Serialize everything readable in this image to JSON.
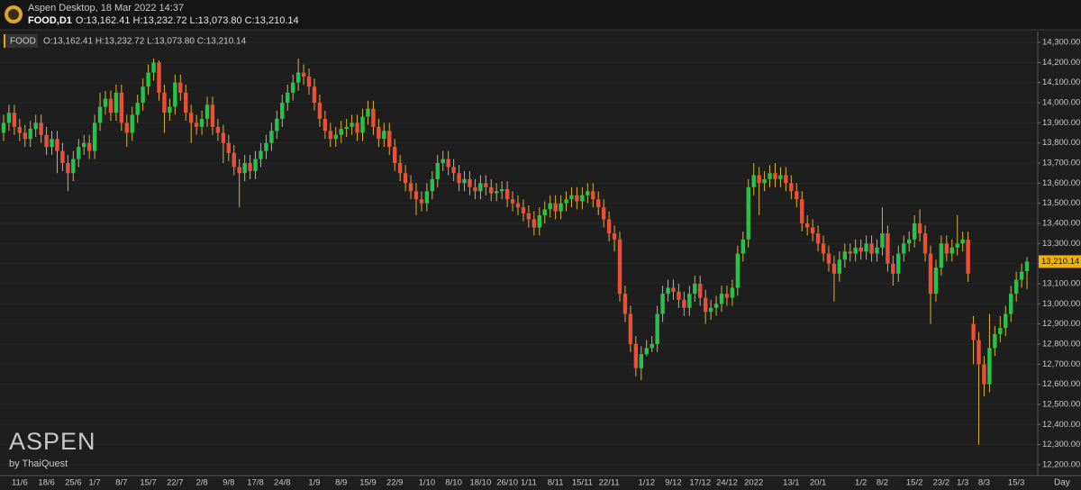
{
  "window": {
    "title": "Aspen Desktop, 18 Mar 2022 14:37",
    "symbol_period": "FOOD,D1",
    "ohlc": "O:13,162.41 H:13,232.72 L:13,073.80 C:13,210.14"
  },
  "chart_data": {
    "type": "candlestick",
    "symbol": "FOOD",
    "ohlc_label": "O:13,162.41 H:13,232.72 L:13,073.80 C:13,210.14",
    "timeframe": "Day",
    "watermark": "ASPEN",
    "watermark_sub": "by ThaiQuest",
    "categories": [
      null,
      null,
      null,
      "11/6",
      null,
      null,
      null,
      null,
      "18/6",
      null,
      null,
      null,
      null,
      "25/6",
      null,
      null,
      null,
      "1/7",
      null,
      null,
      null,
      null,
      "8/7",
      null,
      null,
      null,
      null,
      "15/7",
      null,
      null,
      null,
      null,
      "22/7",
      null,
      null,
      null,
      null,
      "2/8",
      null,
      null,
      null,
      null,
      "9/8",
      null,
      null,
      null,
      null,
      "17/8",
      null,
      null,
      null,
      null,
      "24/8",
      null,
      null,
      null,
      null,
      null,
      "1/9",
      null,
      null,
      null,
      null,
      "8/9",
      null,
      null,
      null,
      null,
      "15/9",
      null,
      null,
      null,
      null,
      "22/9",
      null,
      null,
      null,
      null,
      null,
      "1/10",
      null,
      null,
      null,
      null,
      "8/10",
      null,
      null,
      null,
      null,
      "18/10",
      null,
      null,
      null,
      null,
      "26/10",
      null,
      null,
      null,
      "1/11",
      null,
      null,
      null,
      null,
      "8/11",
      null,
      null,
      null,
      null,
      "15/11",
      null,
      null,
      null,
      null,
      "22/11",
      null,
      null,
      null,
      null,
      null,
      null,
      "1/12",
      null,
      null,
      null,
      null,
      "9/12",
      null,
      null,
      null,
      null,
      "17/12",
      null,
      null,
      null,
      null,
      "24/12",
      null,
      null,
      null,
      null,
      "2022",
      null,
      null,
      null,
      null,
      null,
      null,
      "13/1",
      null,
      null,
      null,
      null,
      "20/1",
      null,
      null,
      null,
      null,
      null,
      null,
      null,
      "1/2",
      null,
      null,
      null,
      "8/2",
      null,
      null,
      null,
      null,
      null,
      "15/2",
      null,
      null,
      null,
      null,
      "23/2",
      null,
      null,
      null,
      "1/3",
      null,
      null,
      null,
      "8/3",
      null,
      null,
      null,
      null,
      null,
      "15/3",
      null,
      null
    ],
    "series": [
      {
        "name": "FOOD",
        "up_color": "#27c24c",
        "down_color": "#e8503a",
        "wick_color": "#d8b23c",
        "open": [
          13850,
          13900,
          13950,
          13880,
          13850,
          13820,
          13870,
          13900,
          13840,
          13780,
          13820,
          13760,
          13700,
          13650,
          13720,
          13780,
          13800,
          13760,
          13900,
          13980,
          14020,
          13950,
          14050,
          13900,
          13850,
          13940,
          14000,
          14080,
          14150,
          14200,
          14050,
          13950,
          13980,
          14100,
          14050,
          13950,
          13900,
          13880,
          13920,
          13990,
          13880,
          13850,
          13800,
          13750,
          13680,
          13650,
          13700,
          13660,
          13720,
          13760,
          13800,
          13860,
          13920,
          14000,
          14050,
          14100,
          14150,
          14130,
          14080,
          14000,
          13920,
          13860,
          13820,
          13840,
          13870,
          13880,
          13900,
          13850,
          13930,
          13970,
          13880,
          13820,
          13860,
          13780,
          13700,
          13650,
          13600,
          13560,
          13520,
          13500,
          13560,
          13620,
          13700,
          13720,
          13680,
          13650,
          13600,
          13620,
          13580,
          13560,
          13600,
          13580,
          13550,
          13560,
          13570,
          13520,
          13500,
          13480,
          13450,
          13420,
          13380,
          13440,
          13470,
          13500,
          13460,
          13500,
          13520,
          13540,
          13510,
          13540,
          13560,
          13520,
          13480,
          13420,
          13350,
          13320,
          13050,
          12950,
          12800,
          12680,
          12750,
          12780,
          12800,
          12950,
          13050,
          13080,
          13060,
          13020,
          12980,
          13050,
          13100,
          13030,
          12960,
          12980,
          13000,
          13050,
          13030,
          13080,
          13250,
          13320,
          13580,
          13640,
          13600,
          13620,
          13650,
          13620,
          13640,
          13600,
          13560,
          13520,
          13400,
          13380,
          13350,
          13300,
          13250,
          13200,
          13150,
          13220,
          13260,
          13250,
          13280,
          13260,
          13300,
          13250,
          13280,
          13350,
          13200,
          13150,
          13250,
          13300,
          13320,
          13400,
          13350,
          13250,
          13050,
          13180,
          13300,
          13250,
          13280,
          13300,
          13320,
          12900,
          12820,
          12700,
          12600,
          12780,
          12850,
          12880,
          12950,
          13050,
          13120,
          13162.41
        ],
        "high": [
          13940,
          13990,
          13990,
          13920,
          13890,
          13910,
          13940,
          13940,
          13880,
          13860,
          13860,
          13800,
          13740,
          13760,
          13820,
          13840,
          13840,
          13940,
          14050,
          14060,
          14060,
          14090,
          14090,
          13940,
          13980,
          14040,
          14120,
          14190,
          14220,
          14210,
          14090,
          14020,
          14140,
          14140,
          14090,
          13990,
          13940,
          13960,
          14030,
          14030,
          13920,
          13890,
          13840,
          13790,
          13720,
          13740,
          13740,
          13760,
          13800,
          13840,
          13900,
          13960,
          14040,
          14090,
          14140,
          14220,
          14190,
          14170,
          14120,
          14040,
          13960,
          13900,
          13880,
          13910,
          13920,
          13940,
          13940,
          13970,
          14010,
          14010,
          13920,
          13900,
          13900,
          13820,
          13740,
          13690,
          13640,
          13600,
          13560,
          13600,
          13660,
          13740,
          13760,
          13760,
          13720,
          13690,
          13660,
          13660,
          13620,
          13640,
          13640,
          13620,
          13600,
          13610,
          13610,
          13560,
          13540,
          13520,
          13490,
          13460,
          13480,
          13510,
          13540,
          13540,
          13540,
          13560,
          13580,
          13580,
          13580,
          13600,
          13600,
          13560,
          13520,
          13460,
          13390,
          13360,
          13090,
          12990,
          12840,
          12790,
          12820,
          12840,
          12990,
          13090,
          13120,
          13120,
          13100,
          13060,
          13090,
          13140,
          13140,
          13070,
          13020,
          13040,
          13090,
          13090,
          13120,
          13290,
          13360,
          13620,
          13700,
          13680,
          13660,
          13690,
          13700,
          13680,
          13680,
          13640,
          13600,
          13560,
          13440,
          13420,
          13390,
          13340,
          13290,
          13240,
          13260,
          13300,
          13300,
          13320,
          13320,
          13340,
          13340,
          13320,
          13480,
          13390,
          13240,
          13290,
          13340,
          13360,
          13440,
          13470,
          13390,
          13290,
          13220,
          13340,
          13340,
          13320,
          13440,
          13360,
          13360,
          12940,
          12860,
          12740,
          12950,
          12890,
          12940,
          12990,
          13090,
          13160,
          13200,
          13232.72
        ],
        "low": [
          13810,
          13860,
          13840,
          13810,
          13780,
          13780,
          13830,
          13800,
          13740,
          13740,
          13650,
          13660,
          13560,
          13610,
          13680,
          13740,
          13720,
          13720,
          13860,
          13940,
          13910,
          13910,
          13860,
          13780,
          13810,
          13900,
          13960,
          14040,
          14110,
          14010,
          13850,
          13910,
          13940,
          14010,
          13910,
          13800,
          13840,
          13840,
          13880,
          13840,
          13810,
          13700,
          13710,
          13640,
          13480,
          13610,
          13620,
          13620,
          13680,
          13720,
          13760,
          13820,
          13880,
          13960,
          14010,
          14060,
          14090,
          14040,
          13960,
          13880,
          13820,
          13780,
          13780,
          13800,
          13830,
          13840,
          13810,
          13810,
          13890,
          13840,
          13780,
          13780,
          13740,
          13660,
          13610,
          13560,
          13520,
          13440,
          13460,
          13460,
          13520,
          13580,
          13660,
          13640,
          13610,
          13560,
          13560,
          13540,
          13520,
          13520,
          13540,
          13510,
          13510,
          13520,
          13480,
          13460,
          13440,
          13410,
          13380,
          13340,
          13340,
          13400,
          13430,
          13420,
          13420,
          13460,
          13480,
          13470,
          13470,
          13500,
          13480,
          13440,
          13380,
          13310,
          13260,
          13010,
          12910,
          12760,
          12640,
          12620,
          12740,
          12760,
          12760,
          12910,
          13010,
          13020,
          12980,
          12940,
          12940,
          13010,
          12990,
          12900,
          12920,
          12940,
          12960,
          12990,
          12990,
          13040,
          13210,
          13280,
          13540,
          13440,
          13560,
          13580,
          13580,
          13580,
          13560,
          13520,
          13480,
          13360,
          13340,
          13310,
          13260,
          13210,
          13160,
          13010,
          13110,
          13180,
          13210,
          13210,
          13220,
          13220,
          13210,
          13210,
          13240,
          13160,
          13090,
          13110,
          13210,
          13260,
          13280,
          13310,
          13210,
          12900,
          13010,
          13140,
          13210,
          13210,
          13240,
          13260,
          13110,
          12700,
          12300,
          12540,
          12560,
          12740,
          12810,
          12840,
          12910,
          13010,
          13080,
          13073.8
        ],
        "close": [
          13900,
          13950,
          13880,
          13850,
          13820,
          13870,
          13900,
          13840,
          13780,
          13820,
          13760,
          13700,
          13650,
          13720,
          13780,
          13800,
          13760,
          13900,
          13980,
          14020,
          13950,
          14050,
          13900,
          13850,
          13940,
          14000,
          14080,
          14150,
          14200,
          14050,
          13950,
          13980,
          14100,
          14050,
          13950,
          13900,
          13880,
          13920,
          13990,
          13880,
          13850,
          13800,
          13750,
          13680,
          13650,
          13700,
          13660,
          13720,
          13760,
          13800,
          13860,
          13920,
          14000,
          14050,
          14100,
          14150,
          14130,
          14080,
          14000,
          13920,
          13860,
          13820,
          13840,
          13870,
          13880,
          13900,
          13850,
          13930,
          13970,
          13880,
          13820,
          13860,
          13780,
          13700,
          13650,
          13600,
          13560,
          13520,
          13500,
          13560,
          13620,
          13700,
          13720,
          13680,
          13650,
          13600,
          13620,
          13580,
          13560,
          13600,
          13580,
          13550,
          13560,
          13570,
          13520,
          13500,
          13480,
          13450,
          13420,
          13380,
          13440,
          13470,
          13500,
          13460,
          13500,
          13520,
          13540,
          13510,
          13540,
          13560,
          13520,
          13480,
          13420,
          13350,
          13320,
          13050,
          12950,
          12800,
          12680,
          12750,
          12780,
          12800,
          12950,
          13050,
          13080,
          13060,
          13020,
          12980,
          13050,
          13100,
          13030,
          12960,
          12980,
          13000,
          13050,
          13030,
          13080,
          13250,
          13320,
          13580,
          13640,
          13600,
          13620,
          13650,
          13620,
          13640,
          13600,
          13560,
          13520,
          13400,
          13380,
          13350,
          13300,
          13250,
          13200,
          13150,
          13220,
          13260,
          13250,
          13280,
          13260,
          13300,
          13250,
          13280,
          13350,
          13200,
          13150,
          13250,
          13300,
          13320,
          13400,
          13350,
          13250,
          13050,
          13180,
          13300,
          13250,
          13280,
          13300,
          13320,
          13150,
          12820,
          12700,
          12600,
          12780,
          12850,
          12880,
          12950,
          13050,
          13120,
          13160,
          13210.14
        ]
      }
    ],
    "ylim": [
      12146,
      14354
    ],
    "yticks": [
      {
        "value": 12200,
        "label": "12,200.00"
      },
      {
        "value": 12300,
        "label": "12,300.00"
      },
      {
        "value": 12400,
        "label": "12,400.00"
      },
      {
        "value": 12500,
        "label": "12,500.00"
      },
      {
        "value": 12600,
        "label": "12,600.00"
      },
      {
        "value": 12700,
        "label": "12,700.00"
      },
      {
        "value": 12800,
        "label": "12,800.00"
      },
      {
        "value": 12900,
        "label": "12,900.00"
      },
      {
        "value": 13000,
        "label": "13,000.00"
      },
      {
        "value": 13100,
        "label": "13,100.00"
      },
      {
        "value": 13200,
        "label": "13,200.00"
      },
      {
        "value": 13300,
        "label": "13,300.00"
      },
      {
        "value": 13400,
        "label": "13,400.00"
      },
      {
        "value": 13500,
        "label": "13,500.00"
      },
      {
        "value": 13600,
        "label": "13,600.00"
      },
      {
        "value": 13700,
        "label": "13,700.00"
      },
      {
        "value": 13800,
        "label": "13,800.00"
      },
      {
        "value": 13900,
        "label": "13,900.00"
      },
      {
        "value": 14000,
        "label": "14,000.00"
      },
      {
        "value": 14100,
        "label": "14,100.00"
      },
      {
        "value": 14200,
        "label": "14,200.00"
      },
      {
        "value": 14300,
        "label": "14,300.00"
      }
    ],
    "last_price": {
      "value": 13210.14,
      "label": "13,210.14"
    },
    "grid": true
  }
}
